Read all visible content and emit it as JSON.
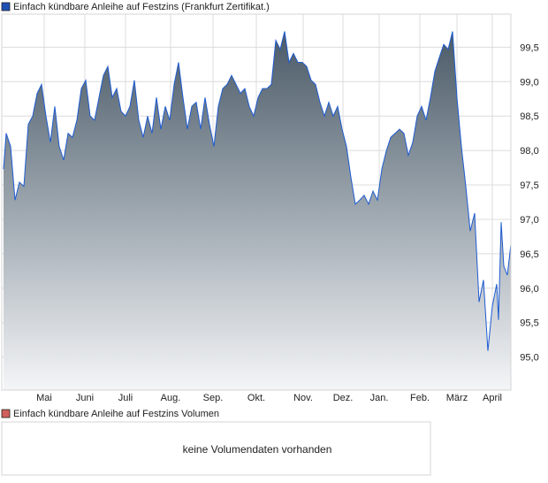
{
  "chart_data": {
    "type": "area",
    "title": "Einfach kündbare Anleihe auf Festzins (Frankfurt Zertifikat.)",
    "legend_color": "#1e50b4",
    "line_color": "#1e5bd0",
    "x_unit": "sample index (approx. trading periods)",
    "xlim": [
      0,
      116.6
    ],
    "ylim": [
      94.52,
      99.98
    ],
    "y_ticks": [
      "95,0",
      "95,5",
      "96,0",
      "96,5",
      "97,0",
      "97,5",
      "98,0",
      "98,5",
      "99,0",
      "99,5"
    ],
    "y_tick_values": [
      95.0,
      95.5,
      96.0,
      96.5,
      97.0,
      97.5,
      98.0,
      98.5,
      99.0,
      99.5
    ],
    "x_ticks": [
      {
        "label": "Mai",
        "x": 9.6
      },
      {
        "label": "Juni",
        "x": 18.8
      },
      {
        "label": "Juli",
        "x": 28
      },
      {
        "label": "Aug.",
        "x": 38.2
      },
      {
        "label": "Sep.",
        "x": 47.8
      },
      {
        "label": "Okt.",
        "x": 57.6
      },
      {
        "label": "Nov.",
        "x": 68.2
      },
      {
        "label": "Dez.",
        "x": 77.2
      },
      {
        "label": "Jan.",
        "x": 85.4
      },
      {
        "label": "Feb.",
        "x": 94.6
      },
      {
        "label": "März",
        "x": 103
      },
      {
        "label": "April",
        "x": 111
      }
    ],
    "grid": true,
    "legend_placement": "top-left",
    "x": [
      0.4,
      1,
      2,
      3,
      4,
      5,
      6,
      7,
      8,
      9,
      10,
      11,
      12,
      13,
      14,
      15,
      16,
      17,
      18,
      19,
      20,
      21,
      22,
      23,
      24,
      25,
      26,
      27,
      28,
      29,
      30,
      31,
      32,
      33,
      34,
      35,
      36,
      37,
      38,
      39,
      40,
      41,
      42,
      43,
      44,
      45,
      46,
      47,
      48,
      49,
      50,
      51,
      52,
      53,
      54,
      55,
      56,
      57,
      58,
      59,
      60,
      61,
      62,
      63,
      64,
      65,
      66,
      67,
      68,
      69,
      70,
      71,
      72,
      73,
      74,
      75,
      76,
      77,
      78,
      79,
      80,
      81,
      82,
      83,
      84,
      85,
      86,
      87,
      88,
      89,
      90,
      91,
      92,
      93,
      94,
      95,
      96,
      97,
      98,
      99,
      100,
      101,
      102,
      103,
      104,
      105,
      106,
      107,
      108,
      109,
      110,
      111,
      112,
      112.4,
      113,
      113.6,
      114.4,
      115.2
    ],
    "values": [
      97.73,
      98.25,
      98.06,
      97.28,
      97.54,
      97.48,
      98.38,
      98.5,
      98.83,
      98.96,
      98.5,
      98.12,
      98.64,
      98.06,
      97.86,
      98.25,
      98.19,
      98.44,
      98.9,
      99.02,
      98.5,
      98.44,
      98.77,
      99.09,
      99.22,
      98.77,
      98.9,
      98.57,
      98.5,
      98.64,
      99.02,
      98.44,
      98.19,
      98.5,
      98.25,
      98.77,
      98.31,
      98.64,
      98.44,
      98.96,
      99.28,
      98.77,
      98.31,
      98.64,
      98.7,
      98.31,
      98.77,
      98.38,
      98.06,
      98.64,
      98.9,
      98.96,
      99.09,
      98.96,
      98.83,
      98.9,
      98.64,
      98.5,
      98.77,
      98.9,
      98.9,
      98.96,
      99.6,
      99.47,
      99.73,
      99.28,
      99.41,
      99.28,
      99.28,
      99.22,
      99.02,
      98.96,
      98.7,
      98.5,
      98.7,
      98.5,
      98.64,
      98.31,
      98.06,
      97.61,
      97.22,
      97.28,
      97.35,
      97.22,
      97.41,
      97.28,
      97.73,
      97.99,
      98.19,
      98.25,
      98.31,
      98.25,
      97.93,
      98.12,
      98.5,
      98.64,
      98.44,
      98.77,
      99.15,
      99.35,
      99.54,
      99.47,
      99.73,
      98.77,
      98.06,
      97.48,
      96.83,
      97.09,
      95.8,
      96.12,
      95.09,
      95.74,
      96.06,
      95.54,
      96.96,
      96.32,
      96.19,
      96.64
    ]
  },
  "volume": {
    "legend": "Einfach kündbare Anleihe auf Festzins Volumen",
    "legend_color": "#d0605c",
    "message": "keine Volumendaten vorhanden"
  }
}
